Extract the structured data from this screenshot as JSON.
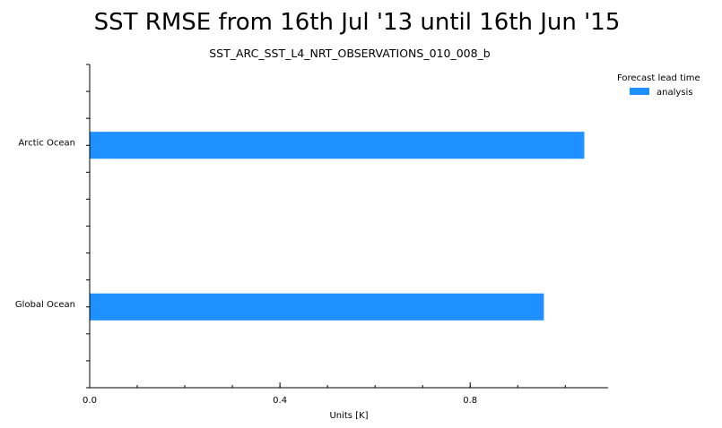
{
  "chart_data": {
    "type": "bar",
    "orientation": "horizontal",
    "title": "SST RMSE from 16th Jul '13 until 16th Jun '15",
    "subtitle": "SST_ARC_SST_L4_NRT_OBSERVATIONS_010_008_b",
    "xlabel": "Units [K]",
    "ylabel": "",
    "xlim": [
      0.0,
      1.09
    ],
    "x_ticks": [
      "0.0",
      "0.4",
      "0.8"
    ],
    "categories": [
      "Arctic Ocean",
      "Global Ocean"
    ],
    "series": [
      {
        "name": "analysis",
        "values": [
          1.04,
          0.955
        ],
        "color": "#1e90ff"
      }
    ],
    "legend": {
      "title": "Forecast lead time",
      "placement": "top-right"
    },
    "grid": false
  }
}
